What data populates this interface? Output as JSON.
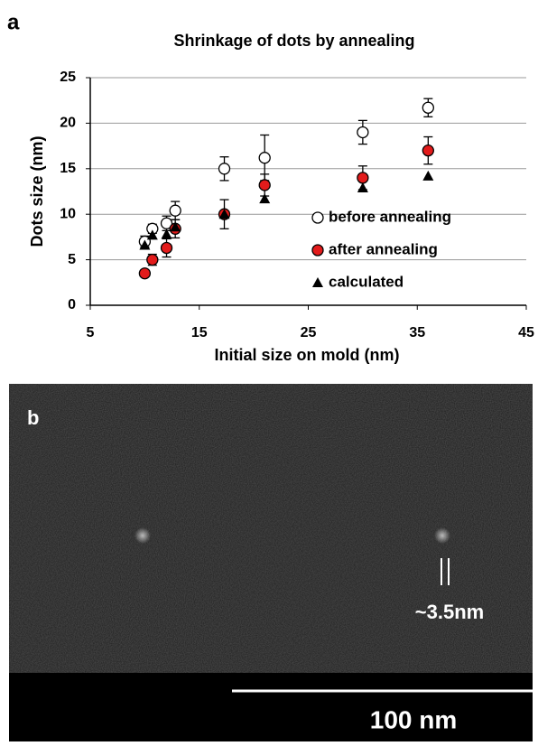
{
  "panel_labels": [
    "a",
    "b"
  ],
  "chart_data": {
    "type": "scatter",
    "title": "Shrinkage of dots by annealing",
    "x_label": "Initial size on mold (nm)",
    "y_label": "Dots size (nm)",
    "xlim": [
      5,
      45
    ],
    "xticks": [
      5,
      15,
      25,
      35,
      45
    ],
    "ylim": [
      0,
      25
    ],
    "yticks": [
      0,
      5,
      10,
      15,
      20,
      25
    ],
    "grid": true,
    "legend": "right",
    "series": [
      {
        "name": "before annealing",
        "color": "#ffffff",
        "marker": "circle",
        "x": [
          10,
          10.7,
          12,
          12.8,
          17.3,
          21,
          30,
          36
        ],
        "values": [
          7,
          8.4,
          9,
          10.4,
          15,
          16.2,
          19,
          21.7
        ],
        "errors": [
          0.6,
          0.5,
          0.8,
          1,
          1.3,
          2.5,
          1.3,
          1
        ]
      },
      {
        "name": "after annealing",
        "color": "#e31b1b",
        "marker": "circle",
        "x": [
          10,
          10.7,
          12,
          12.8,
          17.3,
          21,
          30,
          36
        ],
        "values": [
          3.5,
          5,
          6.3,
          8.4,
          10,
          13.2,
          14,
          17
        ],
        "errors": [
          0.3,
          0.6,
          1,
          1,
          1.6,
          1.2,
          1.3,
          1.5
        ]
      },
      {
        "name": "calculated",
        "color": "#000000",
        "marker": "triangle",
        "x": [
          10,
          10.7,
          12,
          12.8,
          17.3,
          21,
          30,
          36
        ],
        "values": [
          6.6,
          7.7,
          7.8,
          8.6,
          10,
          11.7,
          12.9,
          14.2
        ]
      }
    ]
  },
  "image": {
    "annotation": "~3.5nm",
    "scale_bar": "100 nm"
  }
}
